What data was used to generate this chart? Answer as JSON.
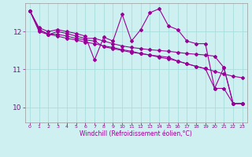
{
  "background_color": "#cef0f0",
  "line_color": "#990099",
  "grid_color": "#aadddd",
  "xlabel": "Windchill (Refroidissement éolien,°C)",
  "xlim": [
    -0.5,
    23.5
  ],
  "ylim": [
    9.6,
    12.75
  ],
  "yticks": [
    10,
    11,
    12
  ],
  "xticks": [
    0,
    1,
    2,
    3,
    4,
    5,
    6,
    7,
    8,
    9,
    10,
    11,
    12,
    13,
    14,
    15,
    16,
    17,
    18,
    19,
    20,
    21,
    22,
    23
  ],
  "series": [
    [
      12.55,
      12.1,
      12.0,
      12.05,
      12.0,
      11.95,
      11.88,
      11.25,
      11.85,
      11.75,
      12.45,
      11.75,
      12.05,
      12.5,
      12.6,
      12.15,
      12.05,
      11.75,
      11.68,
      11.68,
      10.5,
      11.05,
      10.1,
      10.1
    ],
    [
      12.55,
      12.0,
      11.92,
      12.0,
      11.95,
      11.88,
      11.82,
      11.82,
      11.75,
      11.68,
      11.62,
      11.58,
      11.55,
      11.52,
      11.5,
      11.48,
      11.45,
      11.42,
      11.4,
      11.38,
      11.35,
      11.05,
      10.1,
      10.1
    ],
    [
      12.55,
      12.05,
      11.93,
      11.93,
      11.88,
      11.82,
      11.78,
      11.75,
      11.6,
      11.55,
      11.5,
      11.45,
      11.42,
      11.38,
      11.35,
      11.32,
      11.22,
      11.15,
      11.08,
      11.02,
      10.5,
      10.5,
      10.1,
      10.1
    ],
    [
      12.55,
      12.05,
      11.93,
      11.88,
      11.82,
      11.78,
      11.72,
      11.68,
      11.62,
      11.58,
      11.52,
      11.48,
      11.42,
      11.38,
      11.32,
      11.28,
      11.22,
      11.15,
      11.08,
      11.02,
      10.95,
      10.88,
      10.82,
      10.78
    ]
  ]
}
